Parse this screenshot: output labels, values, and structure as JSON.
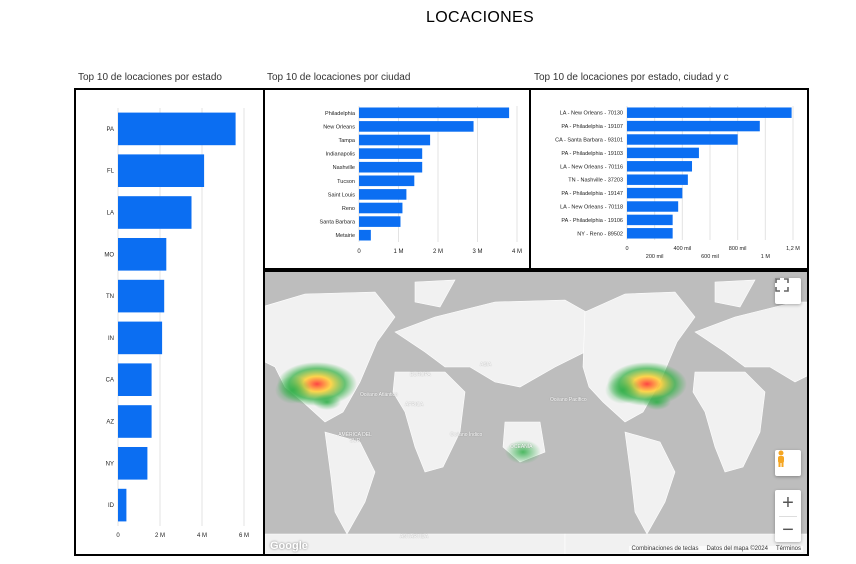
{
  "page_title": "LOCACIONES",
  "colors": {
    "bar": "#0b6ef2",
    "grid": "#e3e3e3",
    "ocean": "#bcbcbc",
    "land": "#f2f2f2"
  },
  "chart_data": [
    {
      "type": "bar",
      "orientation": "horizontal",
      "title": "Top 10 de locaciones por estado",
      "categories": [
        "PA",
        "FL",
        "LA",
        "MO",
        "TN",
        "IN",
        "CA",
        "AZ",
        "NY",
        "ID"
      ],
      "values": [
        5.6,
        4.1,
        3.5,
        2.3,
        2.2,
        2.1,
        1.6,
        1.6,
        1.4,
        0.4
      ],
      "value_unit": "M",
      "xlim": [
        0,
        6
      ],
      "ticks": [
        0,
        2,
        4,
        6
      ],
      "tick_labels": [
        "0",
        "2 M",
        "4 M",
        "6 M"
      ],
      "grid": true
    },
    {
      "type": "bar",
      "orientation": "horizontal",
      "title": "Top 10 de locaciones por ciudad",
      "categories": [
        "Philadelphia",
        "New Orleans",
        "Tampa",
        "Indianapolis",
        "Nashville",
        "Tucson",
        "Saint Louis",
        "Reno",
        "Santa Barbara",
        "Metairie"
      ],
      "values": [
        3.8,
        2.9,
        1.8,
        1.6,
        1.6,
        1.4,
        1.2,
        1.1,
        1.05,
        0.3
      ],
      "value_unit": "M",
      "xlim": [
        0,
        4
      ],
      "ticks": [
        0,
        1,
        2,
        3,
        4
      ],
      "tick_labels": [
        "0",
        "1 M",
        "2 M",
        "3 M",
        "4 M"
      ],
      "grid": true
    },
    {
      "type": "bar",
      "orientation": "horizontal",
      "title": "Top 10 de locaciones por estado, ciudad y c",
      "categories": [
        "LA - New Orleans - 70130",
        "PA - Philadelphia - 19107",
        "CA - Santa Barbara - 93101",
        "PA - Philadelphia - 19103",
        "LA - New Orleans - 70116",
        "TN - Nashville - 37203",
        "PA - Philadelphia - 19147",
        "LA - New Orleans - 70118",
        "PA - Philadelphia - 19106",
        "NY - Reno - 89502"
      ],
      "values": [
        1190000,
        960000,
        800000,
        520000,
        470000,
        440000,
        400000,
        370000,
        330000,
        330000
      ],
      "value_unit": "mil",
      "xlim": [
        0,
        1200000
      ],
      "ticks": [
        0,
        200000,
        400000,
        600000,
        800000,
        1000000,
        1200000
      ],
      "tick_labels": [
        "0",
        "200 mil",
        "400 mil",
        "600 mil",
        "800 mil",
        "1 M",
        "1,2 M"
      ],
      "grid": true
    }
  ],
  "map": {
    "footer": [
      "Combinaciones de teclas",
      "Datos del mapa ©2024",
      "Términos"
    ],
    "logo": "Google",
    "labels": [
      "ASIA",
      "EUROPA",
      "ÁFRICA",
      "AMÉRICA DEL SUR",
      "OCEANÍA",
      "ANTÁRTIDA",
      "Océano Índico",
      "Océano Atlántico",
      "Océano Pacífico"
    ],
    "fullscreen_icon": "fullscreen-icon",
    "pegman_icon": "pegman-icon",
    "zoom_in_label": "+",
    "zoom_out_label": "−"
  }
}
